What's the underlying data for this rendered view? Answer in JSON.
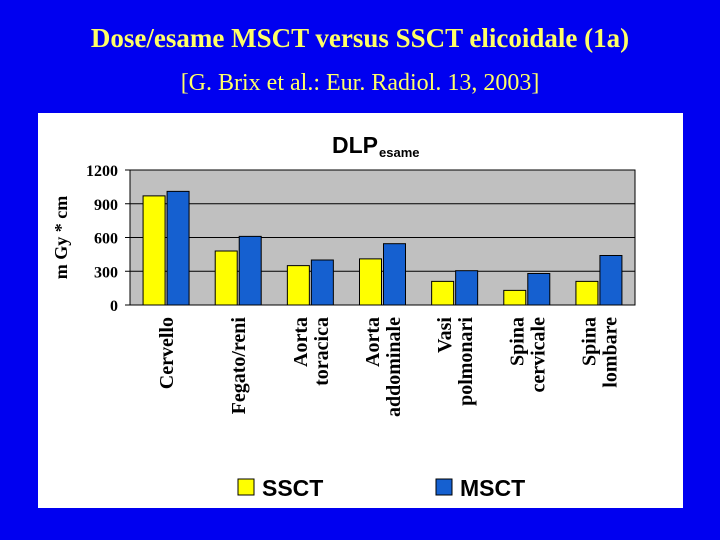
{
  "slide": {
    "title": "Dose/esame MSCT versus SSCT elicoidale (1a)",
    "subtitle": "[G. Brix et al.: Eur. Radiol. 13, 2003]"
  },
  "colors": {
    "background": "#0000f0",
    "title_text": "#ffff66",
    "ssct": "#ffff00",
    "msct": "#1560d0",
    "plot_area": "#c0c0c0"
  },
  "chart_data": {
    "type": "bar",
    "title_main": "DLP",
    "title_sub": "esame",
    "ylabel": "m Gy * cm",
    "xlabel": "",
    "ylim": [
      0,
      1200
    ],
    "yticks": [
      0,
      300,
      600,
      900,
      1200
    ],
    "grid": true,
    "legend_position": "bottom",
    "categories": [
      [
        "Cervello"
      ],
      [
        "Fegato/reni"
      ],
      [
        "Aorta",
        "toracica"
      ],
      [
        "Aorta",
        "addominale"
      ],
      [
        "Vasi",
        "polmonari"
      ],
      [
        "Spina",
        "cervicale"
      ],
      [
        "Spina",
        "lombare"
      ]
    ],
    "series": [
      {
        "name": "SSCT",
        "color": "#ffff00",
        "values": [
          970,
          480,
          350,
          410,
          210,
          130,
          210
        ]
      },
      {
        "name": "MSCT",
        "color": "#1560d0",
        "values": [
          1010,
          610,
          400,
          545,
          305,
          280,
          440
        ]
      }
    ]
  }
}
